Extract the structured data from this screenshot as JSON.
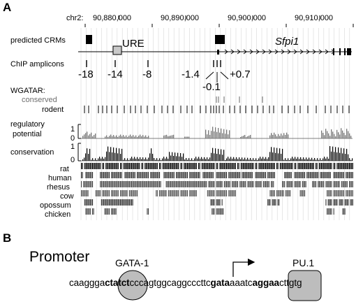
{
  "panel_a": {
    "label": "A",
    "chromosome_label": "chr2:",
    "coordinates": [
      "90,880,000",
      "90,890,000",
      "90,900,000",
      "90,910,000"
    ],
    "track_labels": {
      "predicted_crms": "predicted CRMs",
      "chip_amplicons": "ChIP amplicons",
      "wgatar": "WGATAR:",
      "conserved": "conserved",
      "rodent": "rodent",
      "regulatory_potential_1": "regulatory",
      "regulatory_potential_2": "potential",
      "conservation": "conservation",
      "scale_one": "1",
      "scale_zero": "0"
    },
    "element_labels": {
      "ure": "URE",
      "gene": "Sfpi1"
    },
    "amplicon_positions": [
      "-18",
      "-14",
      "-8",
      "-1.4",
      "-0.1",
      "+0.7"
    ],
    "species": [
      "rat",
      "human",
      "rhesus",
      "cow",
      "opossum",
      "chicken"
    ]
  },
  "panel_b": {
    "label": "B",
    "title": "Promoter",
    "gata1_label": "GATA-1",
    "pu1_label": "PU.1",
    "sequence": {
      "s1": "caaggga",
      "s2": "ctatct",
      "s3": "cccagtggcaggcccttc",
      "s4": "gata",
      "s5": "aaatc",
      "s6": "aggaa",
      "s7": "cttgtg"
    }
  },
  "colors": {
    "black": "#000000",
    "gray_text": "#6e6e6e",
    "gray_fill": "#bdbdbd",
    "grid": "#cfcfcf",
    "signal_gray": "#7a7a7a"
  }
}
